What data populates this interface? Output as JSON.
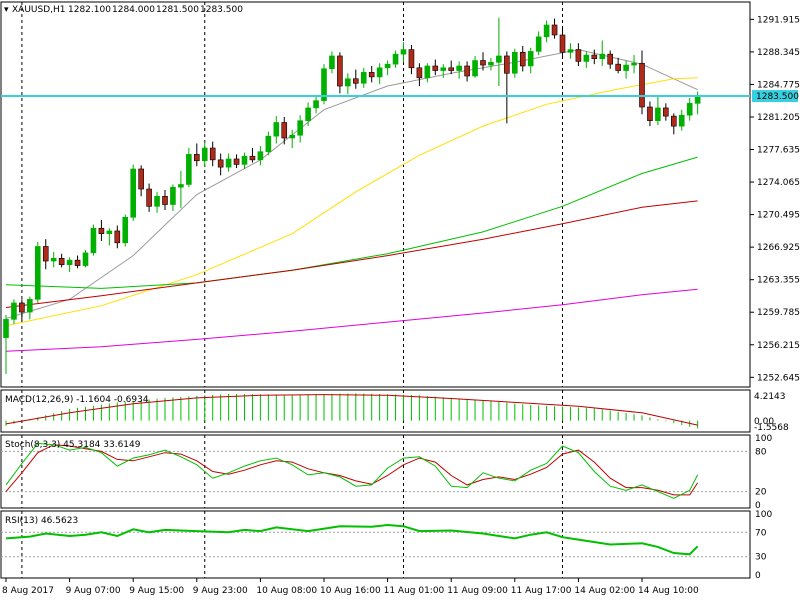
{
  "colors": {
    "background": "#ffffff",
    "border": "#000000",
    "bull_candle": "#00b000",
    "bear_candle": "#b02a1a",
    "current_price_line": "#38d0e0",
    "price_tag_bg": "#38d0e0",
    "ma_grey": "#9a9a9a",
    "ma_yellow": "#ffe000",
    "ma_green": "#00c000",
    "ma_red": "#c00000",
    "ma_magenta": "#e000e0",
    "macd_hist": "#00c000",
    "macd_signal": "#c00000",
    "stoch_main": "#00c000",
    "stoch_signal": "#c00000",
    "rsi_line": "#00c000",
    "level_line": "#a0a0a0",
    "session_line": "#000000"
  },
  "chart_data": {
    "type": "candlestick",
    "header": {
      "symbol": "XAUUSD,H1",
      "open": "1282.100",
      "high": "1284.000",
      "low": "1281.500",
      "close": "1283.500"
    },
    "current_price_label": "1283.500",
    "price_axis": {
      "min": 1251.8,
      "max": 1293.6,
      "ticks": [
        "1291.915",
        "1288.345",
        "1284.775",
        "1281.205",
        "1277.635",
        "1274.065",
        "1270.495",
        "1266.925",
        "1263.355",
        "1259.785",
        "1256.215",
        "1252.645"
      ]
    },
    "time_labels": [
      "8 Aug 2017",
      "9 Aug 07:00",
      "9 Aug 15:00",
      "9 Aug 23:00",
      "10 Aug 08:00",
      "10 Aug 16:00",
      "11 Aug 01:00",
      "11 Aug 09:00",
      "11 Aug 17:00",
      "14 Aug 02:00",
      "14 Aug 10:00"
    ],
    "candles": [
      [
        1257.0,
        1259.5,
        1253.0,
        1259.0
      ],
      [
        1259.0,
        1261.2,
        1258.5,
        1260.8
      ],
      [
        1260.8,
        1261.2,
        1258.8,
        1259.8
      ],
      [
        1259.8,
        1261.5,
        1259.0,
        1261.2
      ],
      [
        1261.2,
        1267.5,
        1260.8,
        1267.0
      ],
      [
        1267.0,
        1267.8,
        1264.5,
        1265.4
      ],
      [
        1265.4,
        1266.4,
        1264.7,
        1265.7
      ],
      [
        1265.7,
        1266.2,
        1264.7,
        1265.0
      ],
      [
        1265.0,
        1265.8,
        1264.2,
        1265.5
      ],
      [
        1265.5,
        1266.0,
        1264.6,
        1264.9
      ],
      [
        1264.9,
        1266.6,
        1264.7,
        1266.3
      ],
      [
        1266.3,
        1269.4,
        1266.0,
        1269.0
      ],
      [
        1269.0,
        1269.9,
        1267.6,
        1268.4
      ],
      [
        1268.4,
        1269.0,
        1267.1,
        1268.7
      ],
      [
        1268.7,
        1269.3,
        1266.8,
        1267.4
      ],
      [
        1267.4,
        1270.5,
        1267.0,
        1270.2
      ],
      [
        1270.2,
        1276.0,
        1269.8,
        1275.5
      ],
      [
        1275.5,
        1275.9,
        1272.5,
        1273.3
      ],
      [
        1273.3,
        1273.9,
        1270.8,
        1271.4
      ],
      [
        1271.4,
        1273.0,
        1270.7,
        1272.5
      ],
      [
        1272.5,
        1273.2,
        1271.0,
        1271.6
      ],
      [
        1271.6,
        1273.8,
        1270.9,
        1273.5
      ],
      [
        1273.5,
        1275.3,
        1271.2,
        1273.8
      ],
      [
        1273.8,
        1277.8,
        1273.5,
        1277.1
      ],
      [
        1277.1,
        1278.3,
        1275.8,
        1276.4
      ],
      [
        1276.4,
        1278.5,
        1275.7,
        1277.8
      ],
      [
        1277.8,
        1278.5,
        1275.8,
        1276.5
      ],
      [
        1276.5,
        1277.2,
        1274.8,
        1275.7
      ],
      [
        1275.7,
        1277.2,
        1275.2,
        1276.6
      ],
      [
        1276.6,
        1277.1,
        1275.6,
        1276.0
      ],
      [
        1276.0,
        1277.3,
        1275.5,
        1276.9
      ],
      [
        1276.9,
        1277.8,
        1276.2,
        1276.5
      ],
      [
        1276.5,
        1278.0,
        1275.9,
        1277.4
      ],
      [
        1277.4,
        1279.6,
        1277.0,
        1279.1
      ],
      [
        1279.1,
        1281.3,
        1278.3,
        1280.6
      ],
      [
        1280.6,
        1281.2,
        1278.2,
        1278.9
      ],
      [
        1278.9,
        1279.8,
        1277.8,
        1279.2
      ],
      [
        1279.2,
        1281.4,
        1278.4,
        1280.8
      ],
      [
        1280.8,
        1282.8,
        1280.2,
        1282.2
      ],
      [
        1282.2,
        1283.4,
        1281.6,
        1283.0
      ],
      [
        1283.0,
        1287.0,
        1282.6,
        1286.5
      ],
      [
        1286.5,
        1288.4,
        1286.0,
        1287.9
      ],
      [
        1287.9,
        1288.3,
        1283.8,
        1284.6
      ],
      [
        1284.6,
        1286.0,
        1283.7,
        1285.4
      ],
      [
        1285.4,
        1286.4,
        1284.3,
        1284.9
      ],
      [
        1284.9,
        1286.6,
        1284.4,
        1286.1
      ],
      [
        1286.1,
        1286.8,
        1285.0,
        1285.6
      ],
      [
        1285.6,
        1287.1,
        1284.8,
        1286.6
      ],
      [
        1286.6,
        1287.4,
        1285.8,
        1287.0
      ],
      [
        1287.0,
        1288.5,
        1286.6,
        1288.1
      ],
      [
        1288.1,
        1289.4,
        1287.2,
        1288.6
      ],
      [
        1288.6,
        1289.1,
        1285.9,
        1286.6
      ],
      [
        1286.6,
        1287.1,
        1284.6,
        1285.5
      ],
      [
        1285.5,
        1287.1,
        1285.0,
        1286.8
      ],
      [
        1286.8,
        1287.5,
        1285.8,
        1286.3
      ],
      [
        1286.3,
        1287.0,
        1285.5,
        1286.6
      ],
      [
        1286.6,
        1287.4,
        1285.9,
        1286.3
      ],
      [
        1286.3,
        1287.3,
        1285.4,
        1286.8
      ],
      [
        1286.8,
        1287.3,
        1285.1,
        1285.7
      ],
      [
        1285.7,
        1287.9,
        1285.5,
        1287.4
      ],
      [
        1287.4,
        1288.3,
        1286.3,
        1286.9
      ],
      [
        1286.9,
        1287.7,
        1286.3,
        1287.2
      ],
      [
        1287.2,
        1292.1,
        1284.6,
        1287.9
      ],
      [
        1287.9,
        1288.4,
        1280.5,
        1286.0
      ],
      [
        1286.0,
        1288.7,
        1285.5,
        1288.3
      ],
      [
        1288.3,
        1289.0,
        1286.2,
        1286.8
      ],
      [
        1286.8,
        1288.8,
        1286.0,
        1288.4
      ],
      [
        1288.4,
        1290.6,
        1288.0,
        1290.0
      ],
      [
        1290.0,
        1291.8,
        1289.4,
        1291.3
      ],
      [
        1291.3,
        1292.0,
        1289.8,
        1290.2
      ],
      [
        1290.2,
        1290.9,
        1287.7,
        1288.3
      ],
      [
        1288.3,
        1289.3,
        1287.6,
        1288.6
      ],
      [
        1288.6,
        1289.3,
        1286.8,
        1287.3
      ],
      [
        1287.3,
        1288.4,
        1286.6,
        1288.0
      ],
      [
        1288.0,
        1288.6,
        1287.0,
        1287.6
      ],
      [
        1287.6,
        1289.6,
        1286.8,
        1288.1
      ],
      [
        1288.1,
        1288.5,
        1286.5,
        1287.0
      ],
      [
        1287.0,
        1287.7,
        1286.0,
        1286.3
      ],
      [
        1286.3,
        1287.4,
        1285.4,
        1286.9
      ],
      [
        1286.9,
        1288.0,
        1286.0,
        1287.1
      ],
      [
        1287.1,
        1288.5,
        1281.5,
        1282.3
      ],
      [
        1282.3,
        1282.9,
        1280.2,
        1280.8
      ],
      [
        1280.8,
        1283.4,
        1280.3,
        1282.2
      ],
      [
        1282.2,
        1282.7,
        1280.8,
        1281.3
      ],
      [
        1281.3,
        1281.6,
        1279.3,
        1280.2
      ],
      [
        1280.2,
        1282.0,
        1279.7,
        1281.4
      ],
      [
        1281.4,
        1283.3,
        1280.8,
        1282.7
      ],
      [
        1282.7,
        1284.0,
        1281.5,
        1283.5
      ]
    ],
    "moving_averages": [
      {
        "color": "#9a9a9a",
        "points": [
          [
            0,
            1259.1
          ],
          [
            8,
            1261.2
          ],
          [
            16,
            1266.0
          ],
          [
            24,
            1272.7
          ],
          [
            32,
            1276.5
          ],
          [
            40,
            1282.0
          ],
          [
            48,
            1284.6
          ],
          [
            56,
            1286.0
          ],
          [
            64,
            1287.2
          ],
          [
            72,
            1288.6
          ],
          [
            80,
            1287.0
          ],
          [
            87,
            1284.2
          ]
        ]
      },
      {
        "color": "#ffe000",
        "points": [
          [
            0,
            1258.3
          ],
          [
            12,
            1260.5
          ],
          [
            24,
            1263.9
          ],
          [
            36,
            1268.4
          ],
          [
            44,
            1273.0
          ],
          [
            52,
            1277.0
          ],
          [
            60,
            1280.2
          ],
          [
            68,
            1282.6
          ],
          [
            76,
            1284.1
          ],
          [
            84,
            1285.4
          ],
          [
            87,
            1285.5
          ]
        ]
      },
      {
        "color": "#00c000",
        "points": [
          [
            0,
            1262.8
          ],
          [
            12,
            1262.4
          ],
          [
            24,
            1263.0
          ],
          [
            36,
            1264.4
          ],
          [
            48,
            1266.2
          ],
          [
            60,
            1268.6
          ],
          [
            70,
            1271.4
          ],
          [
            80,
            1275.0
          ],
          [
            87,
            1276.8
          ]
        ]
      },
      {
        "color": "#c00000",
        "points": [
          [
            0,
            1260.3
          ],
          [
            12,
            1261.6
          ],
          [
            24,
            1263.0
          ],
          [
            36,
            1264.4
          ],
          [
            48,
            1266.0
          ],
          [
            60,
            1267.8
          ],
          [
            70,
            1269.5
          ],
          [
            80,
            1271.3
          ],
          [
            87,
            1272.0
          ]
        ]
      },
      {
        "color": "#e000e0",
        "points": [
          [
            0,
            1255.5
          ],
          [
            12,
            1256.0
          ],
          [
            24,
            1256.8
          ],
          [
            36,
            1257.7
          ],
          [
            48,
            1258.7
          ],
          [
            60,
            1259.7
          ],
          [
            70,
            1260.6
          ],
          [
            80,
            1261.7
          ],
          [
            87,
            1262.3
          ]
        ]
      }
    ],
    "macd": {
      "label": "MACD(12,26,9) -1.1604 -0.6934",
      "axis_max_label": "4.2143",
      "axis_zero_label": "0.00",
      "axis_min_label": "-1.5568",
      "min": -1.6,
      "max": 4.4,
      "histogram_points": [
        [
          0,
          -0.8
        ],
        [
          4,
          0.5
        ],
        [
          8,
          1.8
        ],
        [
          14,
          2.8
        ],
        [
          20,
          3.5
        ],
        [
          28,
          4.1
        ],
        [
          36,
          4.0
        ],
        [
          44,
          4.2
        ],
        [
          52,
          3.9
        ],
        [
          60,
          3.1
        ],
        [
          66,
          2.4
        ],
        [
          74,
          1.9
        ],
        [
          80,
          0.8
        ],
        [
          84,
          -0.4
        ],
        [
          87,
          -1.2
        ]
      ],
      "signal_points": [
        [
          0,
          -0.5
        ],
        [
          8,
          1.2
        ],
        [
          16,
          2.6
        ],
        [
          24,
          3.5
        ],
        [
          32,
          3.9
        ],
        [
          40,
          4.0
        ],
        [
          48,
          3.9
        ],
        [
          56,
          3.4
        ],
        [
          64,
          2.8
        ],
        [
          72,
          2.2
        ],
        [
          80,
          1.2
        ],
        [
          87,
          -0.7
        ]
      ]
    },
    "stochastic": {
      "label": "Stoch(8,3,3) 45.3184 33.6149",
      "axis_labels": [
        "100",
        "80",
        "20",
        "0"
      ],
      "levels": [
        80,
        20
      ],
      "main_points": [
        [
          0,
          30
        ],
        [
          2,
          62
        ],
        [
          4,
          92
        ],
        [
          6,
          90
        ],
        [
          8,
          82
        ],
        [
          10,
          86
        ],
        [
          12,
          78
        ],
        [
          14,
          58
        ],
        [
          16,
          70
        ],
        [
          18,
          75
        ],
        [
          20,
          82
        ],
        [
          22,
          72
        ],
        [
          24,
          60
        ],
        [
          26,
          40
        ],
        [
          28,
          48
        ],
        [
          30,
          58
        ],
        [
          32,
          66
        ],
        [
          34,
          70
        ],
        [
          36,
          60
        ],
        [
          38,
          45
        ],
        [
          40,
          48
        ],
        [
          42,
          42
        ],
        [
          44,
          28
        ],
        [
          46,
          30
        ],
        [
          48,
          55
        ],
        [
          50,
          70
        ],
        [
          52,
          72
        ],
        [
          54,
          58
        ],
        [
          56,
          28
        ],
        [
          58,
          26
        ],
        [
          60,
          48
        ],
        [
          62,
          40
        ],
        [
          64,
          36
        ],
        [
          66,
          52
        ],
        [
          68,
          62
        ],
        [
          70,
          88
        ],
        [
          72,
          78
        ],
        [
          74,
          50
        ],
        [
          76,
          28
        ],
        [
          78,
          22
        ],
        [
          80,
          30
        ],
        [
          82,
          20
        ],
        [
          84,
          10
        ],
        [
          86,
          22
        ],
        [
          87,
          45
        ]
      ],
      "signal_points": [
        [
          0,
          20
        ],
        [
          2,
          48
        ],
        [
          4,
          78
        ],
        [
          6,
          90
        ],
        [
          8,
          88
        ],
        [
          10,
          84
        ],
        [
          12,
          80
        ],
        [
          14,
          68
        ],
        [
          16,
          66
        ],
        [
          18,
          72
        ],
        [
          20,
          78
        ],
        [
          22,
          76
        ],
        [
          24,
          66
        ],
        [
          26,
          50
        ],
        [
          28,
          46
        ],
        [
          30,
          52
        ],
        [
          32,
          60
        ],
        [
          34,
          66
        ],
        [
          36,
          64
        ],
        [
          38,
          54
        ],
        [
          40,
          48
        ],
        [
          42,
          44
        ],
        [
          44,
          36
        ],
        [
          46,
          31
        ],
        [
          48,
          44
        ],
        [
          50,
          60
        ],
        [
          52,
          70
        ],
        [
          54,
          64
        ],
        [
          56,
          44
        ],
        [
          58,
          30
        ],
        [
          60,
          38
        ],
        [
          62,
          42
        ],
        [
          64,
          38
        ],
        [
          66,
          46
        ],
        [
          68,
          56
        ],
        [
          70,
          76
        ],
        [
          72,
          82
        ],
        [
          74,
          64
        ],
        [
          76,
          40
        ],
        [
          78,
          26
        ],
        [
          80,
          26
        ],
        [
          82,
          22
        ],
        [
          84,
          15
        ],
        [
          86,
          15
        ],
        [
          87,
          33
        ]
      ]
    },
    "rsi": {
      "label": "RSI(13) 46.5623",
      "axis_labels": [
        "100",
        "70",
        "30",
        "0"
      ],
      "levels": [
        70,
        30
      ],
      "points": [
        [
          0,
          60
        ],
        [
          3,
          63
        ],
        [
          5,
          68
        ],
        [
          8,
          64
        ],
        [
          10,
          66
        ],
        [
          12,
          70
        ],
        [
          14,
          64
        ],
        [
          16,
          75
        ],
        [
          18,
          70
        ],
        [
          20,
          74
        ],
        [
          24,
          72
        ],
        [
          28,
          70
        ],
        [
          30,
          74
        ],
        [
          32,
          72
        ],
        [
          34,
          78
        ],
        [
          38,
          72
        ],
        [
          42,
          80
        ],
        [
          46,
          79
        ],
        [
          48,
          82
        ],
        [
          50,
          80
        ],
        [
          52,
          72
        ],
        [
          56,
          73
        ],
        [
          60,
          68
        ],
        [
          62,
          64
        ],
        [
          64,
          60
        ],
        [
          66,
          66
        ],
        [
          68,
          70
        ],
        [
          70,
          62
        ],
        [
          72,
          58
        ],
        [
          76,
          50
        ],
        [
          80,
          52
        ],
        [
          82,
          46
        ],
        [
          84,
          36
        ],
        [
          86,
          34
        ],
        [
          87,
          47
        ]
      ]
    }
  }
}
